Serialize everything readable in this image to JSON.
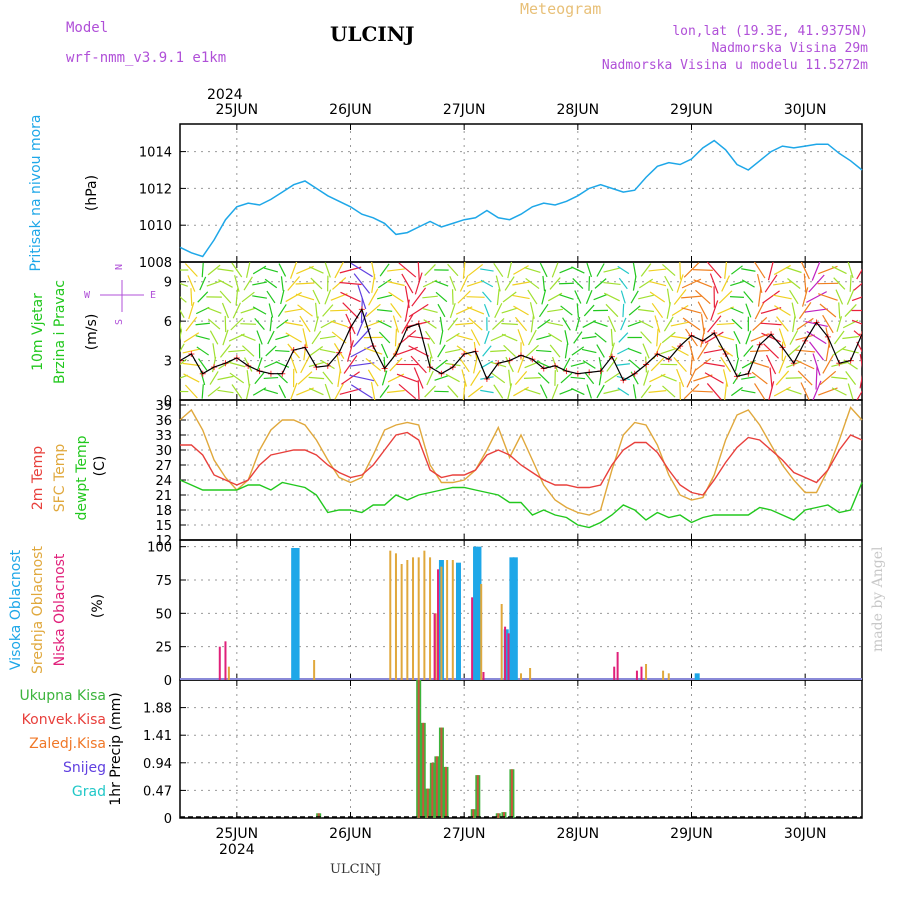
{
  "header": {
    "model_label": "Model",
    "model_name": "wrf-nmm_v3.9.1  e1km",
    "station": "ULCINJ",
    "meteogram": "Meteogram",
    "lonlat": "lon,lat (19.3E, 41.9375N)",
    "elevation": "Nadmorska Visina 29m",
    "model_elevation": "Nadmorska Visina u modelu 11.5272m",
    "footer_station": "ULCINJ",
    "watermark": "made by Angel"
  },
  "colors": {
    "pressure": "#1ea7e8",
    "temp2m": "#e8403c",
    "sfc": "#e0a83c",
    "dewpt": "#22c81e",
    "wind_black": "#000000",
    "high_cloud": "#1ea7e8",
    "mid_cloud": "#e0a83c",
    "low_cloud": "#e0207a",
    "total_precip": "#3cb43c",
    "conv_precip": "#e8403c",
    "header_purple": "#b050d8",
    "header_orange": "#e8c078"
  },
  "chart_data": [
    {
      "type": "line",
      "panel": "pressure",
      "labels": [
        "Pritisak na nivou mora",
        "(hPa)"
      ],
      "top_labels": {
        "year": "2024",
        "dates": [
          "25JUN",
          "26JUN",
          "27JUN",
          "28JUN",
          "29JUN",
          "30JUN"
        ]
      },
      "x_unit": "days since 24JUN 00Z",
      "ylim": [
        1008,
        1015.5
      ],
      "yticks": [
        1008,
        1010,
        1012,
        1014
      ],
      "series": [
        {
          "name": "Pritisak na nivou mora",
          "x": [
            0.5,
            0.6,
            0.7,
            0.8,
            0.9,
            1.0,
            1.1,
            1.2,
            1.3,
            1.4,
            1.5,
            1.6,
            1.7,
            1.8,
            2.0,
            2.1,
            2.2,
            2.3,
            2.4,
            2.5,
            2.6,
            2.7,
            2.8,
            2.9,
            3.0,
            3.1,
            3.2,
            3.3,
            3.4,
            3.5,
            3.6,
            3.7,
            3.8,
            3.9,
            4.0,
            4.1,
            4.2,
            4.3,
            4.4,
            4.5,
            4.6,
            4.7,
            4.8,
            4.9,
            5.0,
            5.1,
            5.2,
            5.3,
            5.4,
            5.5,
            5.6,
            5.7,
            5.8,
            5.9,
            6.0,
            6.1,
            6.2,
            6.3,
            6.4,
            6.5
          ],
          "values": [
            1008.8,
            1008.5,
            1008.3,
            1009.2,
            1010.3,
            1011.0,
            1011.2,
            1011.1,
            1011.4,
            1011.8,
            1012.2,
            1012.4,
            1012.0,
            1011.6,
            1011.0,
            1010.6,
            1010.4,
            1010.1,
            1009.5,
            1009.6,
            1009.9,
            1010.2,
            1009.9,
            1010.1,
            1010.3,
            1010.4,
            1010.8,
            1010.4,
            1010.3,
            1010.6,
            1011.0,
            1011.2,
            1011.1,
            1011.3,
            1011.6,
            1012.0,
            1012.2,
            1012.0,
            1011.8,
            1011.9,
            1012.6,
            1013.2,
            1013.4,
            1013.3,
            1013.6,
            1014.2,
            1014.6,
            1014.1,
            1013.3,
            1013.0,
            1013.5,
            1014.0,
            1014.3,
            1014.2,
            1014.3,
            1014.4,
            1014.4,
            1013.9,
            1013.5,
            1013.0
          ]
        }
      ]
    },
    {
      "type": "line",
      "panel": "wind",
      "labels": [
        "10m Vjetar",
        "Brzina i Pravac",
        "(m/s)"
      ],
      "compass": {
        "n": "N",
        "s": "S",
        "w": "W",
        "e": "E"
      },
      "x_unit": "days since 24JUN 00Z",
      "ylim": [
        0,
        10.5
      ],
      "yticks": [
        0,
        3,
        6,
        9
      ],
      "series": [
        {
          "name": "10m Vjetar",
          "x": [
            0.5,
            0.6,
            0.7,
            0.8,
            0.9,
            1.0,
            1.1,
            1.2,
            1.3,
            1.4,
            1.5,
            1.6,
            1.7,
            1.8,
            1.9,
            2.0,
            2.1,
            2.2,
            2.3,
            2.4,
            2.5,
            2.6,
            2.7,
            2.8,
            2.9,
            3.0,
            3.1,
            3.2,
            3.3,
            3.4,
            3.5,
            3.6,
            3.7,
            3.8,
            3.9,
            4.0,
            4.1,
            4.2,
            4.3,
            4.4,
            4.5,
            4.6,
            4.7,
            4.8,
            4.9,
            5.0,
            5.1,
            5.2,
            5.3,
            5.4,
            5.5,
            5.6,
            5.7,
            5.8,
            5.9,
            6.0,
            6.1,
            6.2,
            6.3,
            6.4,
            6.5
          ],
          "values": [
            3.0,
            3.5,
            2.0,
            2.5,
            2.8,
            3.2,
            2.6,
            2.2,
            2.0,
            2.0,
            3.8,
            4.0,
            2.5,
            2.6,
            3.6,
            5.5,
            6.9,
            4.1,
            2.4,
            3.5,
            5.5,
            5.8,
            2.5,
            2.0,
            2.5,
            3.5,
            3.7,
            1.6,
            2.8,
            3.0,
            3.4,
            3.1,
            2.4,
            2.6,
            2.2,
            2.0,
            2.1,
            2.2,
            3.3,
            1.5,
            2.0,
            2.7,
            3.5,
            3.1,
            4.1,
            4.9,
            4.5,
            5.1,
            3.5,
            1.8,
            2.0,
            4.2,
            5.0,
            4.0,
            2.8,
            4.5,
            5.9,
            4.8,
            2.8,
            3.0,
            5.0
          ]
        }
      ]
    },
    {
      "type": "line",
      "panel": "temperature",
      "labels": [
        "2m Temp",
        "SFC Temp",
        "dewpt Temp",
        "(C)"
      ],
      "x_unit": "days since 24JUN 00Z",
      "ylim": [
        12,
        40
      ],
      "yticks": [
        12,
        15,
        18,
        21,
        24,
        27,
        30,
        33,
        36,
        39
      ],
      "series": [
        {
          "name": "2m Temp",
          "x": [
            0.5,
            0.6,
            0.7,
            0.8,
            0.9,
            1.0,
            1.1,
            1.2,
            1.3,
            1.4,
            1.5,
            1.6,
            1.7,
            1.8,
            1.9,
            2.0,
            2.1,
            2.2,
            2.3,
            2.4,
            2.5,
            2.6,
            2.7,
            2.8,
            2.9,
            3.0,
            3.1,
            3.2,
            3.3,
            3.4,
            3.5,
            3.6,
            3.7,
            3.8,
            3.9,
            4.0,
            4.1,
            4.2,
            4.3,
            4.4,
            4.5,
            4.6,
            4.7,
            4.8,
            4.9,
            5.0,
            5.1,
            5.2,
            5.3,
            5.4,
            5.5,
            5.6,
            5.7,
            5.8,
            5.9,
            6.0,
            6.1,
            6.2,
            6.3,
            6.4,
            6.5
          ],
          "values": [
            31,
            31,
            29,
            25,
            24,
            23,
            24,
            27,
            29,
            29.5,
            30,
            30,
            29,
            27,
            25.5,
            24.5,
            25,
            27,
            30,
            33,
            33.5,
            32,
            26,
            24.5,
            25,
            25,
            26,
            29,
            30,
            29,
            27,
            25.5,
            24,
            23,
            23,
            22.5,
            22.5,
            23,
            27,
            30,
            31.5,
            31.5,
            29.5,
            26,
            23,
            21.5,
            21,
            24,
            27.5,
            30.5,
            32.5,
            32,
            30,
            28,
            25.5,
            24.5,
            23.5,
            26,
            30,
            33,
            32
          ]
        },
        {
          "name": "SFC Temp",
          "x": [
            0.5,
            0.6,
            0.7,
            0.8,
            0.9,
            1.0,
            1.1,
            1.2,
            1.3,
            1.4,
            1.5,
            1.6,
            1.7,
            1.8,
            1.9,
            2.0,
            2.1,
            2.2,
            2.3,
            2.4,
            2.5,
            2.6,
            2.7,
            2.8,
            2.9,
            3.0,
            3.1,
            3.2,
            3.3,
            3.4,
            3.5,
            3.6,
            3.7,
            3.8,
            3.9,
            4.0,
            4.1,
            4.2,
            4.3,
            4.4,
            4.5,
            4.6,
            4.7,
            4.8,
            4.9,
            5.0,
            5.1,
            5.2,
            5.3,
            5.4,
            5.5,
            5.6,
            5.7,
            5.8,
            5.9,
            6.0,
            6.1,
            6.2,
            6.3,
            6.4,
            6.5
          ],
          "values": [
            36,
            38,
            34,
            28,
            24.5,
            22,
            24,
            30,
            34,
            36,
            36,
            35,
            32,
            28,
            24.5,
            23.5,
            24.5,
            29,
            34,
            35,
            35.5,
            35,
            27,
            23.5,
            23.5,
            24,
            26,
            30,
            34.5,
            28.5,
            33,
            28,
            23,
            20,
            18.5,
            17.5,
            17,
            18,
            26,
            33,
            35.5,
            35,
            31,
            25,
            21,
            20,
            20.5,
            25,
            32,
            37,
            38,
            35,
            31,
            27,
            24,
            21.5,
            21.5,
            26,
            32,
            38.5,
            36
          ]
        },
        {
          "name": "dewpt Temp",
          "x": [
            0.5,
            0.6,
            0.7,
            0.8,
            0.9,
            1.0,
            1.1,
            1.2,
            1.3,
            1.4,
            1.5,
            1.6,
            1.7,
            1.8,
            1.9,
            2.0,
            2.1,
            2.2,
            2.3,
            2.4,
            2.5,
            2.6,
            2.7,
            2.8,
            2.9,
            3.0,
            3.1,
            3.2,
            3.3,
            3.4,
            3.5,
            3.6,
            3.7,
            3.8,
            3.9,
            4.0,
            4.1,
            4.2,
            4.3,
            4.4,
            4.5,
            4.6,
            4.7,
            4.8,
            4.9,
            5.0,
            5.1,
            5.2,
            5.3,
            5.4,
            5.5,
            5.6,
            5.7,
            5.8,
            5.9,
            6.0,
            6.1,
            6.2,
            6.3,
            6.4,
            6.5
          ],
          "values": [
            24,
            23,
            22,
            22,
            22,
            22,
            23,
            23,
            22,
            23.5,
            23,
            22.5,
            21,
            17.5,
            18,
            18,
            17.5,
            19,
            19,
            21,
            20,
            21,
            21.5,
            22,
            22.5,
            22.5,
            22,
            21.5,
            21,
            19.5,
            19.5,
            17,
            18,
            17,
            16.5,
            15,
            14.5,
            15.5,
            17,
            19,
            18,
            16,
            17.5,
            16.5,
            17,
            15.5,
            16.5,
            17,
            17,
            17,
            17,
            18.5,
            18,
            17,
            16,
            18,
            18.5,
            19,
            17.5,
            18,
            23.5
          ]
        }
      ]
    },
    {
      "type": "bar",
      "panel": "clouds",
      "labels": [
        "Visoka Oblacnost",
        "Srednja Oblacnost",
        "Niska Oblacnost",
        "(%)"
      ],
      "x_unit": "days since 24JUN 00Z",
      "ylim": [
        0,
        105
      ],
      "yticks": [
        0,
        25,
        50,
        75,
        100
      ],
      "series": [
        {
          "name": "Visoka Oblacnost",
          "x": [
            1.5,
            1.53,
            2.8,
            2.95,
            3.1,
            3.13,
            3.37,
            3.42,
            3.45,
            5.05
          ],
          "values": [
            99,
            99,
            90,
            88,
            100,
            100,
            38,
            92,
            92,
            5
          ]
        },
        {
          "name": "Srednja Oblacnost",
          "x": [
            0.93,
            1.68,
            2.35,
            2.4,
            2.45,
            2.5,
            2.55,
            2.6,
            2.65,
            2.7,
            2.75,
            2.8,
            2.85,
            2.9,
            3.15,
            3.33,
            3.5,
            3.58,
            4.6,
            4.75,
            4.8
          ],
          "values": [
            10,
            15,
            97,
            95,
            87,
            90,
            92,
            92,
            97,
            92,
            50,
            85,
            90,
            90,
            72,
            57,
            5,
            9,
            12,
            7,
            5
          ]
        },
        {
          "name": "Niska Oblacnost",
          "x": [
            0.85,
            0.9,
            2.74,
            2.77,
            3.07,
            3.17,
            3.36,
            3.39,
            4.32,
            4.35,
            4.52,
            4.56
          ],
          "values": [
            25,
            29,
            50,
            83,
            62,
            6,
            40,
            35,
            10,
            21,
            7,
            10
          ]
        }
      ]
    },
    {
      "type": "bar",
      "panel": "precipitation",
      "labels": [
        "Ukupna Kisa",
        "Konvek.Kisa",
        "Zaledj.Kisa",
        "Snijeg",
        "Grad",
        "1hr Precip (mm)"
      ],
      "bottom_labels": {
        "year": "2024",
        "dates": [
          "25JUN",
          "26JUN",
          "27JUN",
          "28JUN",
          "29JUN",
          "30JUN"
        ]
      },
      "x_unit": "days since 24JUN 00Z",
      "ylim": [
        0,
        2.35
      ],
      "yticks": [
        0,
        0.47,
        0.94,
        1.41,
        1.88
      ],
      "ytick_labels": [
        "0",
        "0.47",
        "0.94",
        "1.41",
        "1.88"
      ],
      "series": [
        {
          "name": "Ukupna Kisa",
          "x": [
            1.72,
            2.6,
            2.64,
            2.68,
            2.72,
            2.76,
            2.8,
            2.84,
            3.08,
            3.12,
            3.3,
            3.35,
            3.42
          ],
          "values": [
            0.08,
            2.35,
            1.62,
            0.5,
            0.94,
            1.05,
            1.54,
            0.87,
            0.15,
            0.73,
            0.08,
            0.1,
            0.83
          ]
        },
        {
          "name": "Konvek.Kisa",
          "x": [
            1.72,
            2.6,
            2.64,
            2.68,
            2.72,
            2.76,
            2.8,
            2.84,
            3.08,
            3.12,
            3.3,
            3.35,
            3.42
          ],
          "values": [
            0.08,
            2.35,
            1.62,
            0.5,
            0.94,
            1.05,
            1.54,
            0.87,
            0.15,
            0.73,
            0.08,
            0.1,
            0.83
          ]
        }
      ]
    }
  ]
}
